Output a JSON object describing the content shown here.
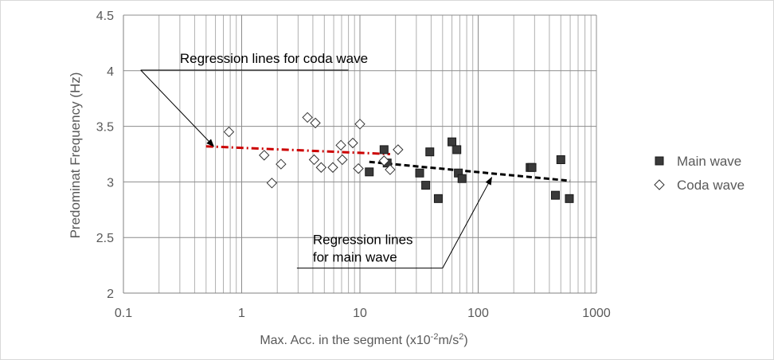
{
  "chart_data": {
    "type": "scatter",
    "xscale": "log",
    "xlim": [
      0.1,
      1000
    ],
    "ylim": [
      2,
      4.5
    ],
    "grid": true,
    "legend_position": "right",
    "xlabel_prefix": "Max. Acc. in the segment (x10",
    "xlabel_exp1": "-2",
    "xlabel_mid": "m/s",
    "xlabel_exp2": "2",
    "xlabel_suffix": ")",
    "ylabel": "Predominat Frequency (Hz)",
    "x_ticks": [
      {
        "v": 0.1,
        "label": "0.1"
      },
      {
        "v": 1,
        "label": "1"
      },
      {
        "v": 10,
        "label": "10"
      },
      {
        "v": 100,
        "label": "100"
      },
      {
        "v": 1000,
        "label": "1000"
      }
    ],
    "y_ticks": [
      {
        "v": 2,
        "label": "2"
      },
      {
        "v": 2.5,
        "label": "2.5"
      },
      {
        "v": 3,
        "label": "3"
      },
      {
        "v": 3.5,
        "label": "3.5"
      },
      {
        "v": 4,
        "label": "4"
      },
      {
        "v": 4.5,
        "label": "4.5"
      }
    ],
    "series": [
      {
        "name": "Main wave",
        "marker": "square",
        "points": [
          [
            12,
            3.09
          ],
          [
            16,
            3.29
          ],
          [
            17,
            3.17
          ],
          [
            32,
            3.08
          ],
          [
            36,
            2.97
          ],
          [
            39,
            3.27
          ],
          [
            46,
            2.85
          ],
          [
            60,
            3.36
          ],
          [
            66,
            3.29
          ],
          [
            68,
            3.08
          ],
          [
            73,
            3.03
          ],
          [
            275,
            3.13
          ],
          [
            285,
            3.13
          ],
          [
            450,
            2.88
          ],
          [
            500,
            3.2
          ],
          [
            590,
            2.85
          ]
        ]
      },
      {
        "name": "Coda wave",
        "marker": "diamond",
        "points": [
          [
            0.78,
            3.45
          ],
          [
            1.55,
            3.24
          ],
          [
            1.8,
            2.99
          ],
          [
            2.15,
            3.16
          ],
          [
            3.6,
            3.58
          ],
          [
            4.1,
            3.2
          ],
          [
            4.2,
            3.53
          ],
          [
            4.7,
            3.13
          ],
          [
            5.9,
            3.13
          ],
          [
            6.9,
            3.33
          ],
          [
            7.1,
            3.2
          ],
          [
            8.7,
            3.35
          ],
          [
            9.7,
            3.12
          ],
          [
            10,
            3.52
          ],
          [
            16,
            3.19
          ],
          [
            18,
            3.11
          ],
          [
            21,
            3.29
          ]
        ]
      }
    ],
    "regression_lines": [
      {
        "label": "coda",
        "color": "#cc0000",
        "dash": "dash-dot",
        "x": [
          0.5,
          18
        ],
        "y": [
          3.32,
          3.25
        ]
      },
      {
        "label": "main",
        "color": "#000000",
        "dash": "dash",
        "x": [
          12,
          600
        ],
        "y": [
          3.18,
          3.01
        ]
      }
    ],
    "annotations": [
      {
        "id": "coda",
        "text_lines": [
          "Regression lines for coda wave"
        ],
        "text_at": [
          0.3,
          4.07
        ],
        "arrow_to": [
          0.58,
          3.32
        ]
      },
      {
        "id": "main",
        "text_lines": [
          "Regression lines",
          "for main wave"
        ],
        "text_at": [
          3.7,
          2.44
        ],
        "arrow_to": [
          130,
          3.04
        ]
      }
    ],
    "colors": {
      "main_fill": "#3a3a3a",
      "coda_stroke": "#333333",
      "grid": "#999999",
      "axis_text": "#595959"
    }
  }
}
